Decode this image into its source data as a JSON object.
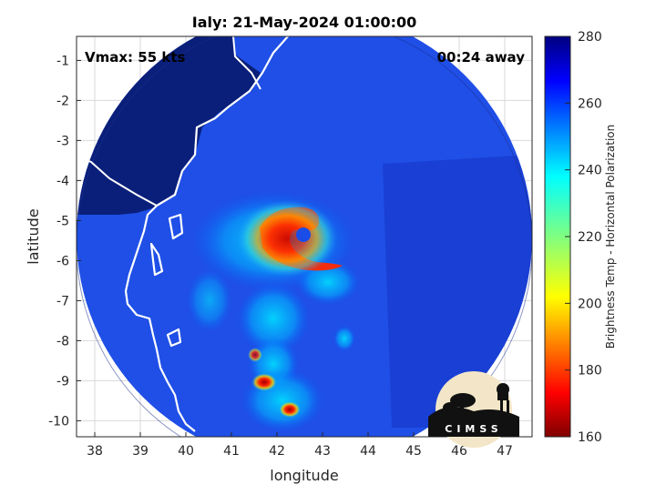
{
  "chart_data": {
    "type": "heatmap",
    "title": "Ialy: 21-May-2024 01:00:00",
    "xlabel": "longitude",
    "ylabel": "latitude",
    "xlim": [
      37.6,
      47.6
    ],
    "ylim": [
      -10.4,
      -0.4
    ],
    "xticks": [
      38,
      39,
      40,
      41,
      42,
      43,
      44,
      45,
      46,
      47
    ],
    "yticks": [
      -1,
      -2,
      -3,
      -4,
      -5,
      -6,
      -7,
      -8,
      -9,
      -10
    ],
    "grid": true,
    "annotations": {
      "vmax": "Vmax: 55 kts",
      "time_away": "00:24 away"
    },
    "colorbar": {
      "label": "Brightness Temp - Horizontal Polarization",
      "min": 160,
      "max": 280,
      "ticks": [
        160,
        180,
        200,
        220,
        240,
        260,
        280
      ]
    },
    "swath": {
      "center": [
        42.6,
        -5.4
      ],
      "radius_deg": 5.0
    },
    "storm": {
      "center": [
        42.2,
        -5.6
      ],
      "min_brightness_temp": 170,
      "background_brightness_temp": 265
    },
    "logo_text": "CIMSS"
  }
}
